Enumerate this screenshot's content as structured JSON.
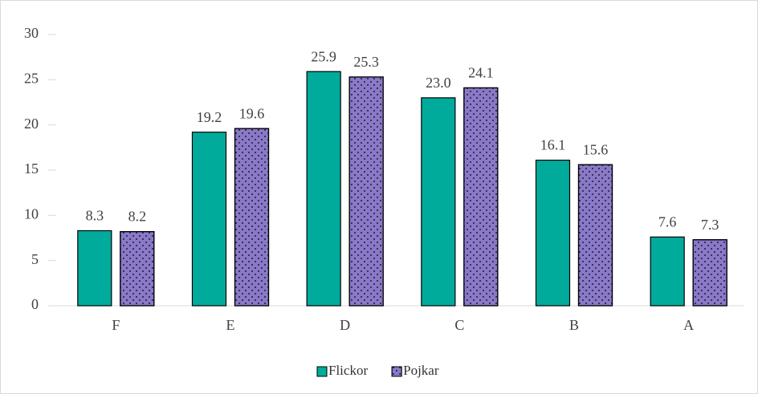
{
  "chart_data": {
    "type": "bar",
    "categories": [
      "F",
      "E",
      "D",
      "C",
      "B",
      "A"
    ],
    "series": [
      {
        "name": "Flickor",
        "color": "#00ab9c",
        "values": [
          8.3,
          19.2,
          25.9,
          23.0,
          16.1,
          7.6
        ],
        "value_labels": [
          "8.3",
          "19.2",
          "25.9",
          "23.0",
          "16.1",
          "7.6"
        ]
      },
      {
        "name": "Pojkar",
        "color": "#8a78c8",
        "pattern": "dots",
        "values": [
          8.2,
          19.6,
          25.3,
          24.1,
          15.6,
          7.3
        ],
        "value_labels": [
          "8.2",
          "19.6",
          "25.3",
          "24.1",
          "15.6",
          "7.3"
        ]
      }
    ],
    "ylim": [
      0,
      30
    ],
    "yticks": [
      0,
      5,
      10,
      15,
      20,
      25,
      30
    ],
    "grid": false,
    "legend": "bottom"
  }
}
